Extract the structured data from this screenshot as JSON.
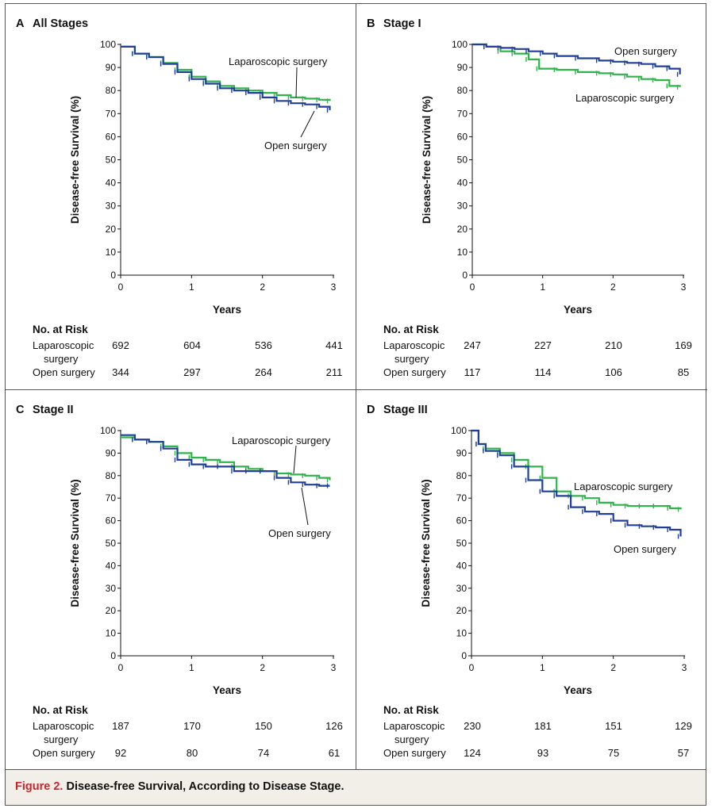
{
  "colors": {
    "laparoscopic": "#2fb34a",
    "open": "#213f99",
    "accent": "#c7262e"
  },
  "caption": {
    "label": "Figure 2.",
    "title": " Disease-free Survival, According to Disease Stage."
  },
  "panels": [
    {
      "letter": "A",
      "title": "All Stages",
      "ylabel": "Disease-free Survival (%)",
      "xlabel": "Years",
      "ylim": [
        0,
        100
      ],
      "yticks": [
        "0",
        "10",
        "20",
        "30",
        "40",
        "50",
        "60",
        "70",
        "80",
        "90",
        "100"
      ],
      "xticks": [
        "0",
        "1",
        "2",
        "3"
      ],
      "annotations": {
        "laparoscopic": "Laparoscopic surgery",
        "open": "Open surgery"
      },
      "risk": {
        "heading": "No. at Risk",
        "lap_label_1": "Laparoscopic",
        "lap_label_2": "surgery",
        "open_label": "Open surgery",
        "lap_values": [
          "692",
          "604",
          "536",
          "441"
        ],
        "open_values": [
          "344",
          "297",
          "264",
          "211"
        ]
      }
    },
    {
      "letter": "B",
      "title": "Stage I",
      "ylabel": "Disease-free Survival (%)",
      "xlabel": "Years",
      "ylim": [
        0,
        100
      ],
      "yticks": [
        "0",
        "10",
        "20",
        "30",
        "40",
        "50",
        "60",
        "70",
        "80",
        "90",
        "100"
      ],
      "xticks": [
        "0",
        "1",
        "2",
        "3"
      ],
      "annotations": {
        "laparoscopic": "Laparoscopic surgery",
        "open": "Open surgery"
      },
      "risk": {
        "heading": "No. at Risk",
        "lap_label_1": "Laparoscopic",
        "lap_label_2": "surgery",
        "open_label": "Open surgery",
        "lap_values": [
          "247",
          "227",
          "210",
          "169"
        ],
        "open_values": [
          "117",
          "114",
          "106",
          "85"
        ]
      }
    },
    {
      "letter": "C",
      "title": "Stage II",
      "ylabel": "Disease-free Survival (%)",
      "xlabel": "Years",
      "ylim": [
        0,
        100
      ],
      "yticks": [
        "0",
        "10",
        "20",
        "30",
        "40",
        "50",
        "60",
        "70",
        "80",
        "90",
        "100"
      ],
      "xticks": [
        "0",
        "1",
        "2",
        "3"
      ],
      "annotations": {
        "laparoscopic": "Laparoscopic surgery",
        "open": "Open surgery"
      },
      "risk": {
        "heading": "No. at Risk",
        "lap_label_1": "Laparoscopic",
        "lap_label_2": "surgery",
        "open_label": "Open surgery",
        "lap_values": [
          "187",
          "170",
          "150",
          "126"
        ],
        "open_values": [
          "92",
          "80",
          "74",
          "61"
        ]
      }
    },
    {
      "letter": "D",
      "title": "Stage III",
      "ylabel": "Disease-free Survival (%)",
      "xlabel": "Years",
      "ylim": [
        0,
        100
      ],
      "yticks": [
        "0",
        "10",
        "20",
        "30",
        "40",
        "50",
        "60",
        "70",
        "80",
        "90",
        "100"
      ],
      "xticks": [
        "0",
        "1",
        "2",
        "3"
      ],
      "annotations": {
        "laparoscopic": "Laparoscopic surgery",
        "open": "Open surgery"
      },
      "risk": {
        "heading": "No. at Risk",
        "lap_label_1": "Laparoscopic",
        "lap_label_2": "surgery",
        "open_label": "Open surgery",
        "lap_values": [
          "230",
          "181",
          "151",
          "129"
        ],
        "open_values": [
          "124",
          "93",
          "75",
          "57"
        ]
      }
    }
  ],
  "chart_data": [
    {
      "type": "line",
      "title": "All Stages",
      "xlabel": "Years",
      "ylabel": "Disease-free Survival (%)",
      "xlim": [
        0,
        3
      ],
      "ylim": [
        0,
        100
      ],
      "series": [
        {
          "name": "Laparoscopic surgery",
          "x": [
            0,
            0.2,
            0.4,
            0.6,
            0.8,
            1.0,
            1.2,
            1.4,
            1.6,
            1.8,
            2.0,
            2.2,
            2.4,
            2.6,
            2.8,
            2.95
          ],
          "y": [
            99,
            96,
            94.5,
            92,
            89,
            86,
            84,
            82,
            81,
            80,
            79,
            78,
            77,
            76.5,
            76,
            75.5
          ]
        },
        {
          "name": "Open surgery",
          "x": [
            0,
            0.2,
            0.4,
            0.6,
            0.8,
            1.0,
            1.2,
            1.4,
            1.6,
            1.8,
            2.0,
            2.2,
            2.4,
            2.6,
            2.8,
            2.95
          ],
          "y": [
            99,
            96,
            94.5,
            91.5,
            88,
            85,
            83,
            81,
            80,
            79,
            77,
            75.5,
            74.5,
            74,
            73,
            71.5
          ]
        }
      ]
    },
    {
      "type": "line",
      "title": "Stage I",
      "xlabel": "Years",
      "ylabel": "Disease-free Survival (%)",
      "xlim": [
        0,
        3
      ],
      "ylim": [
        0,
        100
      ],
      "series": [
        {
          "name": "Laparoscopic surgery",
          "x": [
            0,
            0.2,
            0.4,
            0.6,
            0.8,
            0.95,
            1.2,
            1.5,
            1.8,
            2.0,
            2.2,
            2.4,
            2.6,
            2.8,
            2.95
          ],
          "y": [
            100,
            99,
            97,
            96,
            93.5,
            89.5,
            89,
            88,
            87.5,
            87,
            86,
            85,
            84.5,
            82,
            81.5
          ]
        },
        {
          "name": "Open surgery",
          "x": [
            0,
            0.2,
            0.4,
            0.6,
            0.8,
            1.0,
            1.2,
            1.5,
            1.8,
            2.0,
            2.2,
            2.4,
            2.6,
            2.8,
            2.95
          ],
          "y": [
            100,
            99,
            98.5,
            98,
            97,
            96,
            95,
            94,
            93,
            92.5,
            92,
            91.5,
            90.5,
            89.5,
            87
          ]
        }
      ]
    },
    {
      "type": "line",
      "title": "Stage II",
      "xlabel": "Years",
      "ylabel": "Disease-free Survival (%)",
      "xlim": [
        0,
        3
      ],
      "ylim": [
        0,
        100
      ],
      "series": [
        {
          "name": "Laparoscopic surgery",
          "x": [
            0,
            0.2,
            0.4,
            0.6,
            0.8,
            1.0,
            1.2,
            1.4,
            1.6,
            1.8,
            2.0,
            2.2,
            2.4,
            2.6,
            2.8,
            2.95
          ],
          "y": [
            97,
            96,
            95,
            93,
            90,
            88,
            87,
            86,
            84,
            83,
            82,
            81,
            80.5,
            80,
            79,
            78
          ]
        },
        {
          "name": "Open surgery",
          "x": [
            0,
            0.2,
            0.4,
            0.6,
            0.8,
            1.0,
            1.2,
            1.4,
            1.6,
            1.8,
            2.0,
            2.2,
            2.4,
            2.6,
            2.8,
            2.95
          ],
          "y": [
            98,
            96,
            95,
            92,
            87,
            85,
            84,
            84,
            82,
            82,
            82,
            79,
            77,
            76,
            75.5,
            75.5
          ]
        }
      ]
    },
    {
      "type": "line",
      "title": "Stage III",
      "xlabel": "Years",
      "ylabel": "Disease-free Survival (%)",
      "xlim": [
        0,
        3
      ],
      "ylim": [
        0,
        100
      ],
      "series": [
        {
          "name": "Laparoscopic surgery",
          "x": [
            0,
            0.1,
            0.2,
            0.4,
            0.6,
            0.8,
            1.0,
            1.2,
            1.4,
            1.6,
            1.8,
            2.0,
            2.2,
            2.4,
            2.6,
            2.8,
            2.95
          ],
          "y": [
            100,
            94,
            92,
            90,
            87,
            84,
            79,
            73,
            71,
            70,
            68,
            67,
            66.5,
            66.5,
            66.5,
            65.5,
            65
          ]
        },
        {
          "name": "Open surgery",
          "x": [
            0,
            0.1,
            0.2,
            0.4,
            0.6,
            0.8,
            1.0,
            1.2,
            1.4,
            1.6,
            1.8,
            2.0,
            2.2,
            2.4,
            2.6,
            2.8,
            2.95
          ],
          "y": [
            100,
            94,
            91,
            89,
            84,
            78,
            73,
            71,
            66,
            64,
            63,
            60,
            58,
            57.5,
            57,
            56,
            53
          ]
        }
      ]
    }
  ]
}
